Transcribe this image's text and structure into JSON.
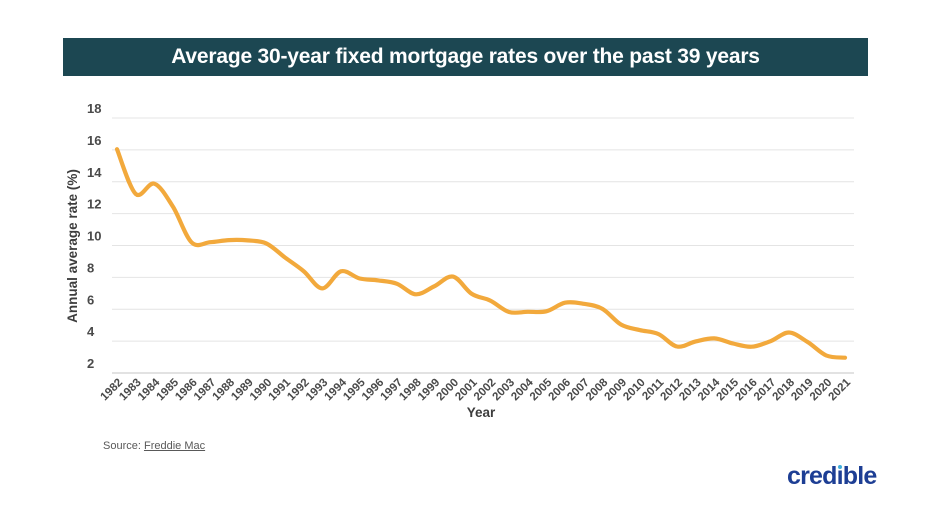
{
  "header": {
    "title": "Average 30-year fixed mortgage rates over the past 39 years",
    "bg_color": "#1C4752",
    "text_color": "#FFFFFF"
  },
  "chart_data": {
    "type": "line",
    "title": "Average 30-year fixed mortgage rates over the past 39 years",
    "xlabel": "Year",
    "ylabel": "Annual average rate (%)",
    "ylim": [
      2,
      18
    ],
    "yticks": [
      2,
      4,
      6,
      8,
      10,
      12,
      14,
      16,
      18
    ],
    "grid": true,
    "legend": false,
    "line_color": "#F2A93C",
    "gridline_color": "#E4E4E4",
    "axis_line_color": "#C6C6C6",
    "tick_label_color": "#4A4A4A",
    "axis_title_color": "#3D3D3D",
    "categories": [
      "1982",
      "1983",
      "1984",
      "1985",
      "1986",
      "1987",
      "1988",
      "1989",
      "1990",
      "1991",
      "1992",
      "1993",
      "1994",
      "1995",
      "1996",
      "1997",
      "1998",
      "1999",
      "2000",
      "2001",
      "2002",
      "2003",
      "2004",
      "2005",
      "2006",
      "2007",
      "2008",
      "2009",
      "2010",
      "2011",
      "2012",
      "2013",
      "2014",
      "2015",
      "2016",
      "2017",
      "2018",
      "2019",
      "2020",
      "2021"
    ],
    "values": [
      16.04,
      13.24,
      13.88,
      12.43,
      10.19,
      10.21,
      10.34,
      10.32,
      10.13,
      9.25,
      8.39,
      7.31,
      8.38,
      7.93,
      7.81,
      7.6,
      6.94,
      7.44,
      8.05,
      6.97,
      6.54,
      5.83,
      5.84,
      5.87,
      6.41,
      6.34,
      6.03,
      5.04,
      4.69,
      4.45,
      3.66,
      3.98,
      4.17,
      3.85,
      3.65,
      3.99,
      4.54,
      3.94,
      3.1,
      2.96
    ]
  },
  "footer": {
    "source_prefix": "Source:",
    "source_link": "Freddie Mac"
  },
  "logo": {
    "text": "credible",
    "color": "#1D3E94",
    "dot_color": "#3FAEDC"
  }
}
